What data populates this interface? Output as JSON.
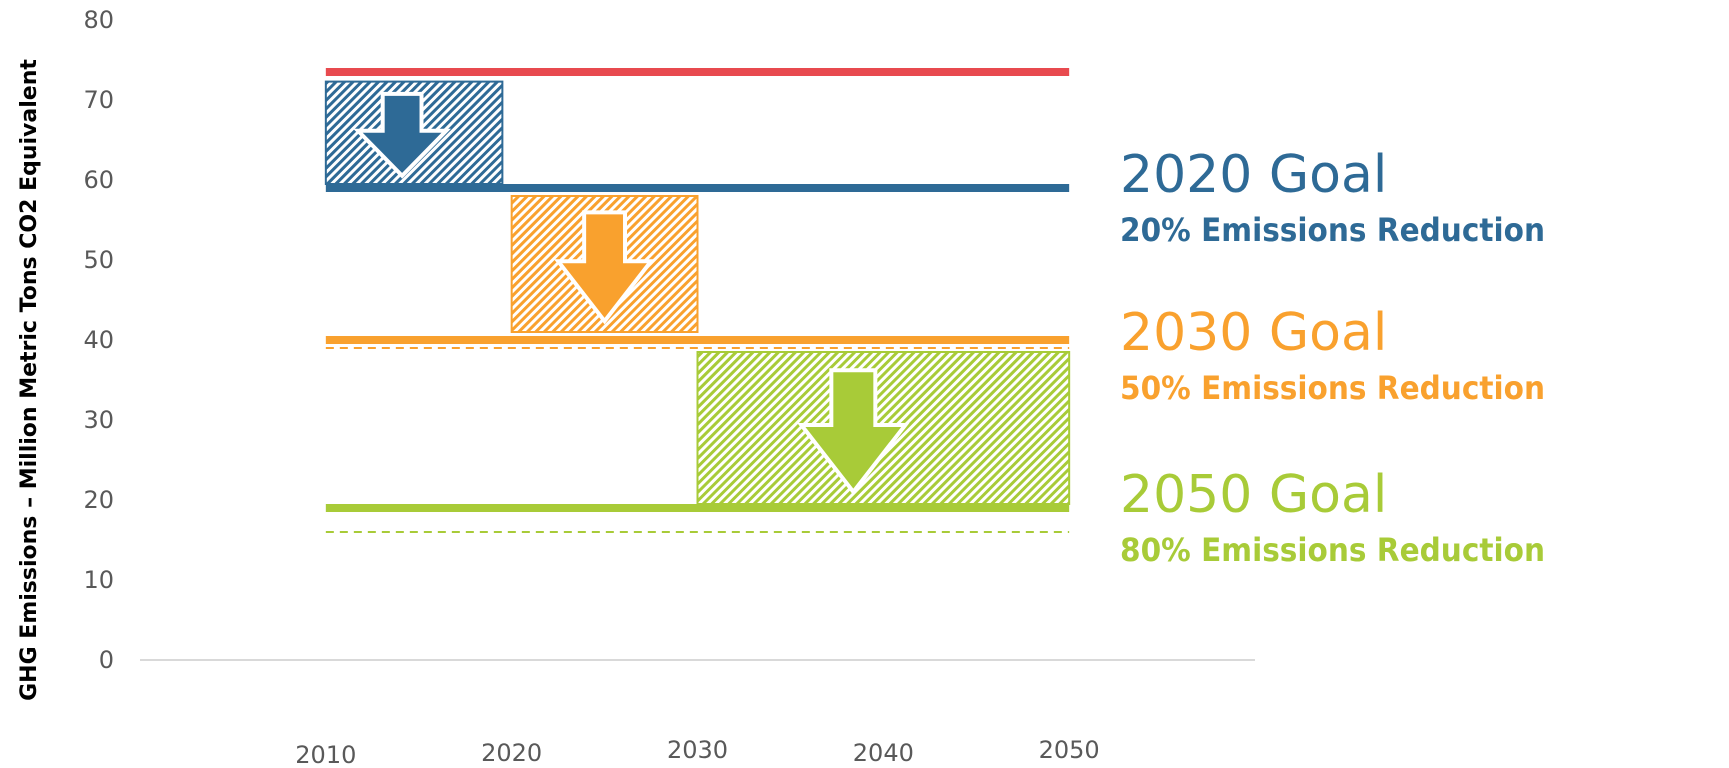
{
  "chart_data": {
    "type": "bar",
    "ylabel": "GHG Emissions – Million Metric Tons CO2 Equivalent",
    "xlabel": "",
    "ylim": [
      0,
      80
    ],
    "xlim": [
      2000,
      2060
    ],
    "yticks": [
      0,
      10,
      20,
      30,
      40,
      50,
      60,
      70,
      80
    ],
    "xticks": [
      2010,
      2020,
      2030,
      2040,
      2050
    ],
    "grid": false,
    "baseline": {
      "value": 73.5,
      "x_start": 2010,
      "x_end": 2050,
      "color": "#E84A4F"
    },
    "goals": [
      {
        "title": "2020 Goal",
        "subtitle": "20% Emissions Reduction",
        "color": "#2E6A96",
        "target_line": {
          "value": 59,
          "x_start": 2010,
          "x_end": 2050
        },
        "reduction_box": {
          "x_start": 2010,
          "x_end": 2019.5,
          "y_top": 72.3,
          "y_bottom": 59.5
        }
      },
      {
        "title": "2030 Goal",
        "subtitle": "50% Emissions Reduction",
        "color": "#F9A12E",
        "target_line": {
          "value": 40,
          "x_start": 2010,
          "x_end": 2050
        },
        "dashed_line": {
          "value": 39,
          "x_start": 2010,
          "x_end": 2050
        },
        "reduction_box": {
          "x_start": 2020,
          "x_end": 2030,
          "y_top": 58,
          "y_bottom": 41
        }
      },
      {
        "title": "2050 Goal",
        "subtitle": "80% Emissions Reduction",
        "color": "#A8CB38",
        "target_line": {
          "value": 19,
          "x_start": 2010,
          "x_end": 2050
        },
        "dashed_line": {
          "value": 16,
          "x_start": 2010,
          "x_end": 2050
        },
        "reduction_box": {
          "x_start": 2030,
          "x_end": 2050,
          "y_top": 38.5,
          "y_bottom": 19.5
        }
      }
    ]
  }
}
